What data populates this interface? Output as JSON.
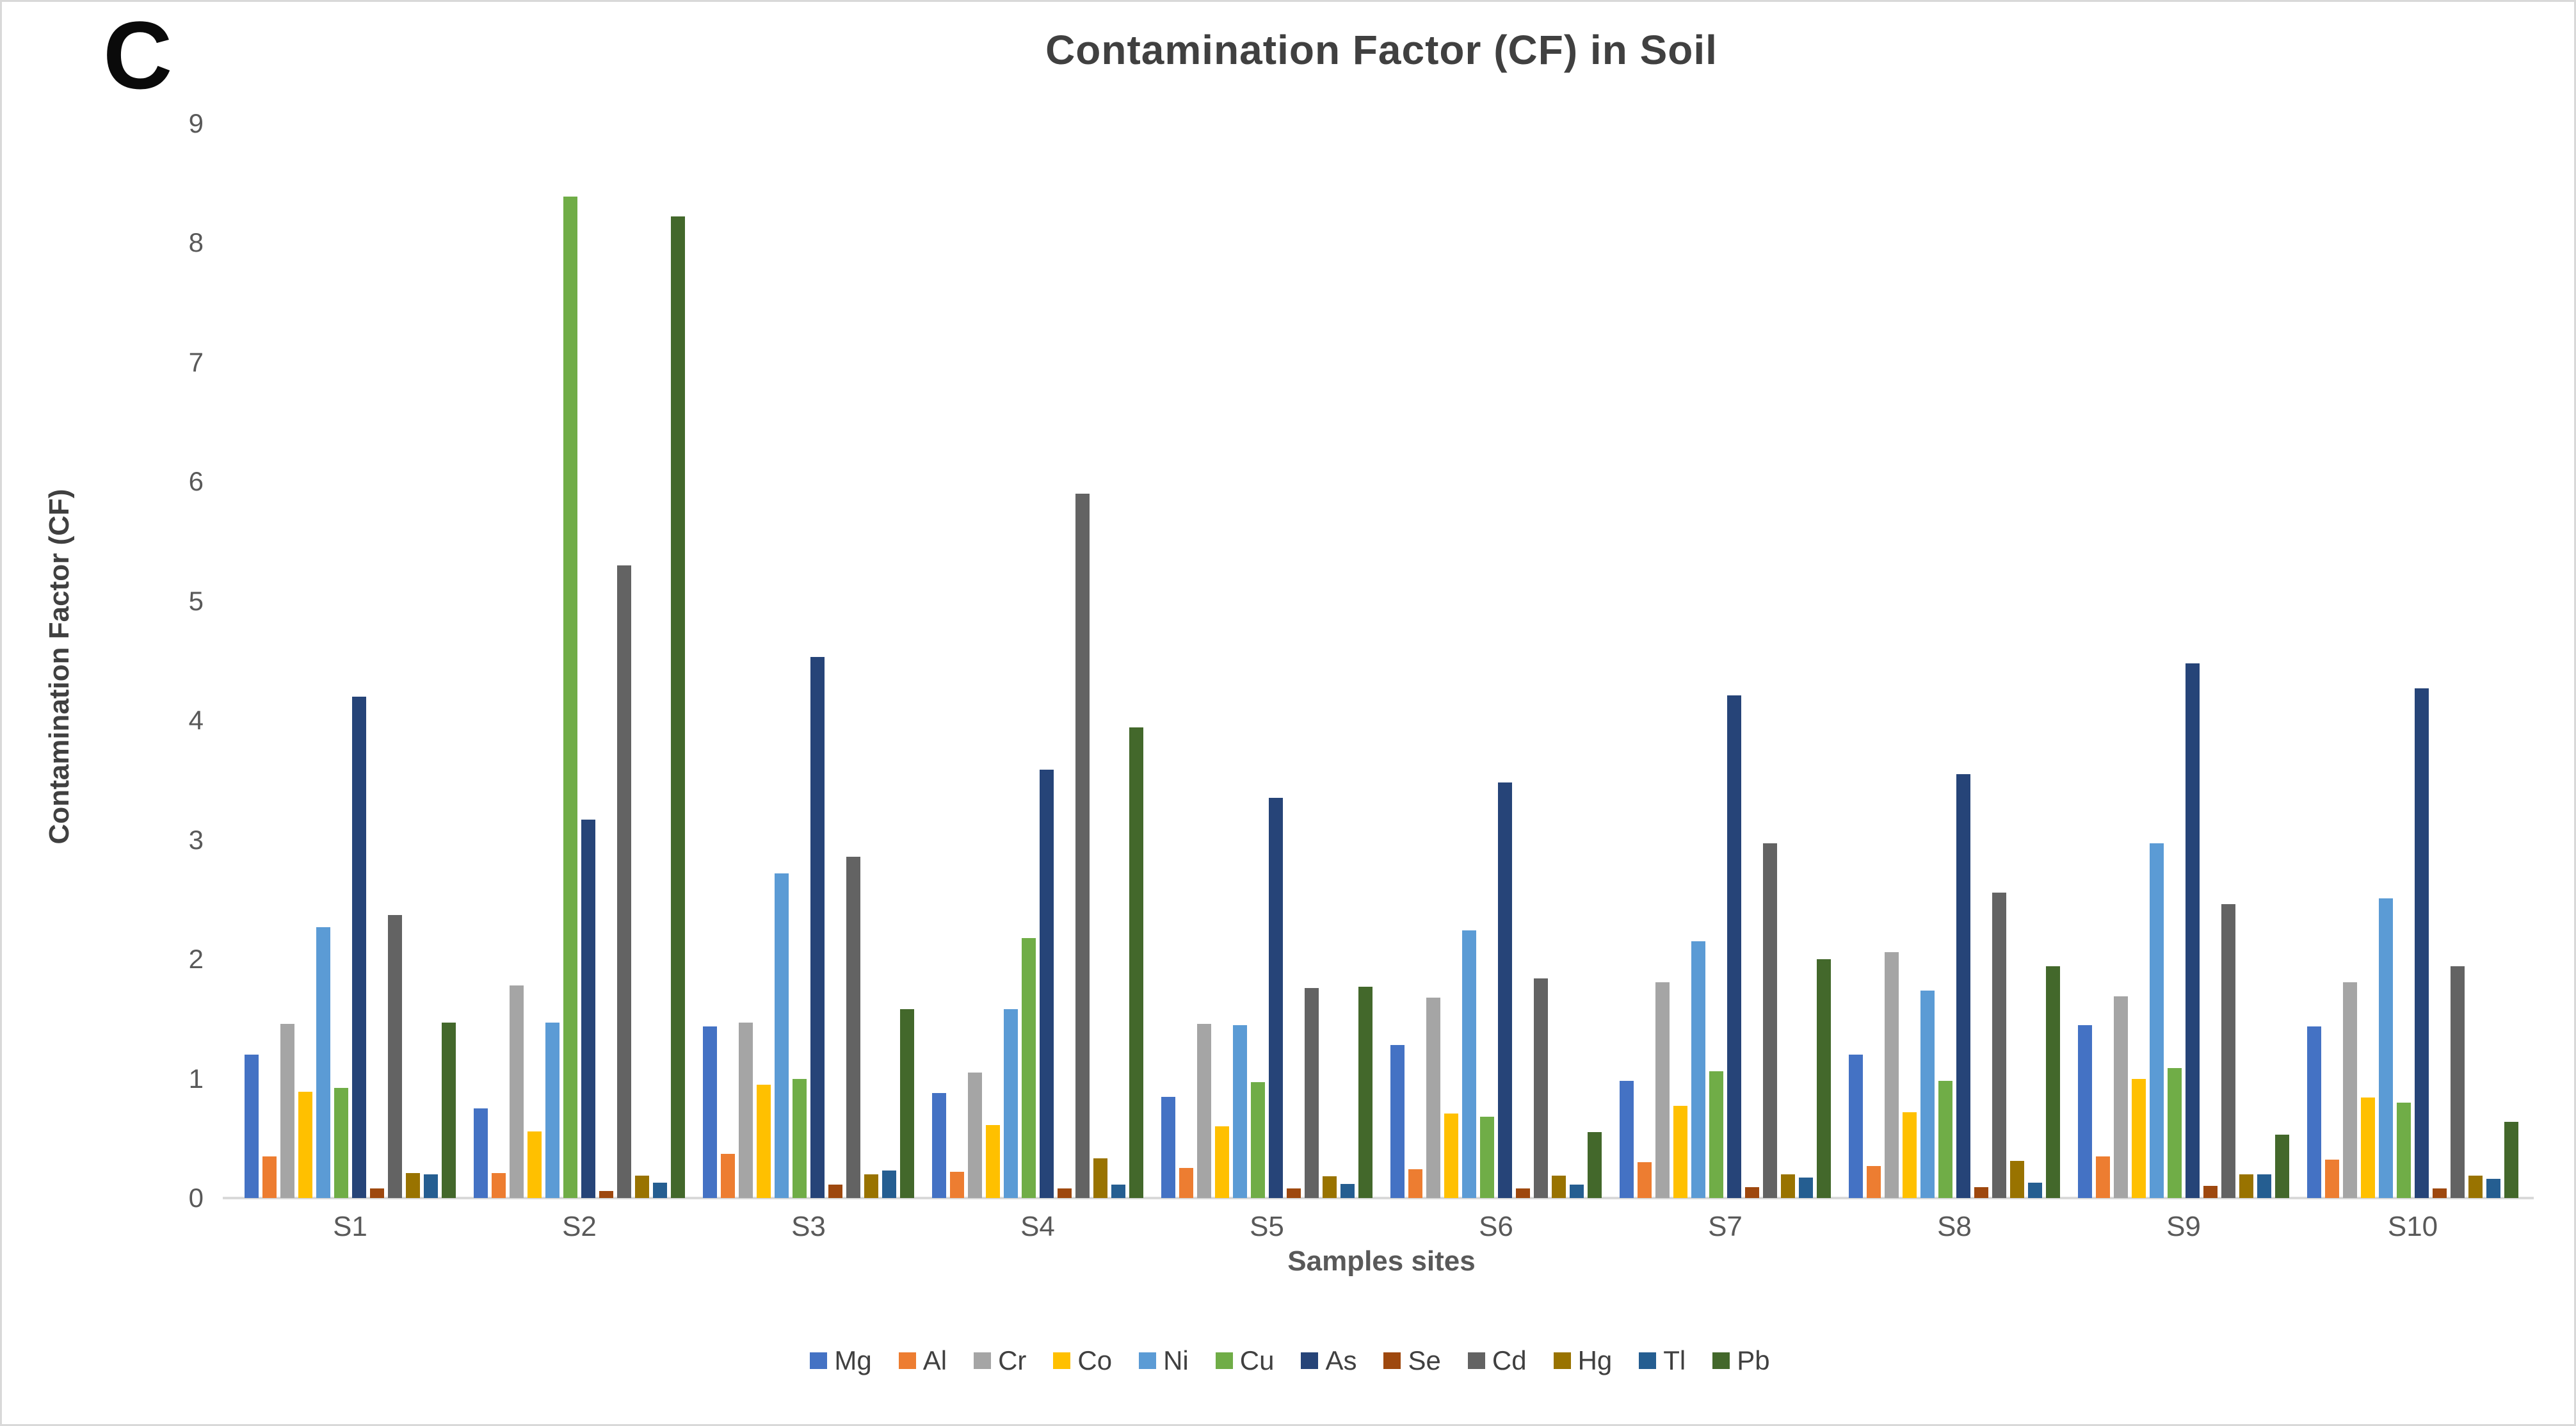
{
  "figure": {
    "panel_label": "C",
    "title": "Contamination Factor (CF) in Soil",
    "x_axis_title": "Samples sites",
    "y_axis_title": "Contamination Factor (CF)"
  },
  "chart_data": {
    "type": "bar",
    "title": "Contamination Factor (CF) in Soil",
    "xlabel": "Samples sites",
    "ylabel": "Contamination Factor (CF)",
    "ylim": [
      0,
      9
    ],
    "y_ticks": [
      0,
      1,
      2,
      3,
      4,
      5,
      6,
      7,
      8,
      9
    ],
    "grid": false,
    "legend_position": "bottom",
    "categories": [
      "S1",
      "S2",
      "S3",
      "S4",
      "S5",
      "S6",
      "S7",
      "S8",
      "S9",
      "S10"
    ],
    "series": [
      {
        "name": "Mg",
        "color": "#4472C4",
        "values": [
          1.2,
          0.75,
          1.44,
          0.88,
          0.85,
          1.28,
          0.98,
          1.2,
          1.45,
          1.44
        ]
      },
      {
        "name": "Al",
        "color": "#ED7D31",
        "values": [
          0.35,
          0.21,
          0.37,
          0.22,
          0.25,
          0.24,
          0.3,
          0.27,
          0.35,
          0.32
        ]
      },
      {
        "name": "Cr",
        "color": "#A5A5A5",
        "values": [
          1.46,
          1.78,
          1.47,
          1.05,
          1.46,
          1.68,
          1.81,
          2.06,
          1.69,
          1.81
        ]
      },
      {
        "name": "Co",
        "color": "#FFC000",
        "values": [
          0.89,
          0.56,
          0.95,
          0.61,
          0.6,
          0.71,
          0.77,
          0.72,
          1.0,
          0.84
        ]
      },
      {
        "name": "Ni",
        "color": "#5B9BD5",
        "values": [
          2.27,
          1.47,
          2.72,
          1.58,
          1.45,
          2.24,
          2.15,
          1.74,
          2.97,
          2.51
        ]
      },
      {
        "name": "Cu",
        "color": "#70AD47",
        "values": [
          0.92,
          8.39,
          1.0,
          2.18,
          0.97,
          0.68,
          1.06,
          0.98,
          1.09,
          0.8
        ]
      },
      {
        "name": "As",
        "color": "#264478",
        "values": [
          4.2,
          3.17,
          4.53,
          3.59,
          3.35,
          3.48,
          4.21,
          3.55,
          4.48,
          4.27
        ]
      },
      {
        "name": "Se",
        "color": "#9E480E",
        "values": [
          0.08,
          0.06,
          0.11,
          0.08,
          0.08,
          0.08,
          0.09,
          0.09,
          0.1,
          0.08
        ]
      },
      {
        "name": "Cd",
        "color": "#636363",
        "values": [
          2.37,
          5.3,
          2.86,
          5.9,
          1.76,
          1.84,
          2.97,
          2.56,
          2.46,
          1.94
        ]
      },
      {
        "name": "Hg",
        "color": "#997300",
        "values": [
          0.21,
          0.19,
          0.2,
          0.33,
          0.18,
          0.19,
          0.2,
          0.31,
          0.2,
          0.19
        ]
      },
      {
        "name": "Tl",
        "color": "#255E91",
        "values": [
          0.2,
          0.13,
          0.23,
          0.11,
          0.12,
          0.11,
          0.17,
          0.13,
          0.2,
          0.16
        ]
      },
      {
        "name": "Pb",
        "color": "#43682B",
        "values": [
          1.47,
          8.22,
          1.58,
          3.94,
          1.77,
          0.55,
          2.0,
          1.94,
          0.53,
          0.64
        ]
      }
    ]
  },
  "colors": {
    "axis_line": "#D9D9D9",
    "tick_text": "#595959",
    "title_text": "#404040",
    "background": "#FFFFFF"
  }
}
